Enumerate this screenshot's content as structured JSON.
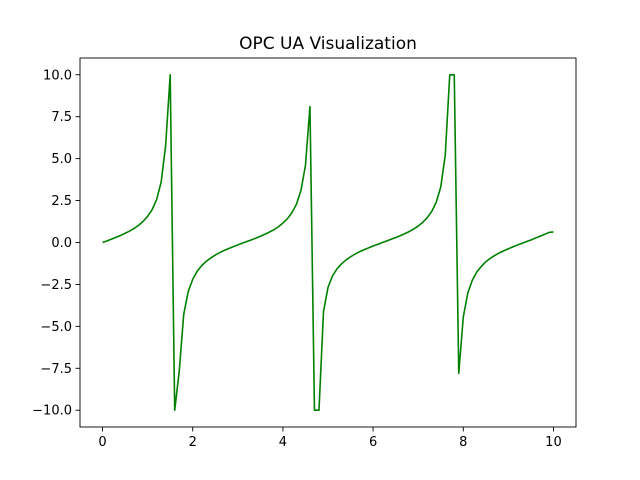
{
  "chart_data": {
    "type": "line",
    "title": "OPC UA Visualization",
    "xlabel": "",
    "ylabel": "",
    "xlim": [
      -0.5,
      10.5
    ],
    "ylim": [
      -11,
      11
    ],
    "x_ticks": [
      0,
      2,
      4,
      6,
      8,
      10
    ],
    "x_tick_labels": [
      "0",
      "2",
      "4",
      "6",
      "8",
      "10"
    ],
    "y_ticks": [
      -10.0,
      -7.5,
      -5.0,
      -2.5,
      0.0,
      2.5,
      5.0,
      7.5,
      10.0
    ],
    "y_tick_labels": [
      "−10.0",
      "−7.5",
      "−5.0",
      "−2.5",
      "0.0",
      "2.5",
      "5.0",
      "7.5",
      "10.0"
    ],
    "grid": false,
    "series": [
      {
        "color": "#008000",
        "x": [
          0,
          0.1,
          0.2,
          0.3,
          0.4,
          0.5,
          0.6,
          0.7,
          0.8,
          0.9,
          1.0,
          1.1,
          1.2,
          1.3,
          1.4,
          1.5,
          1.6,
          1.7,
          1.8,
          1.9,
          2.0,
          2.1,
          2.2,
          2.3,
          2.4,
          2.5,
          2.6,
          2.7,
          2.8,
          2.9,
          3.0,
          3.1,
          3.2,
          3.3,
          3.4,
          3.5,
          3.6,
          3.7,
          3.8,
          3.9,
          4.0,
          4.1,
          4.2,
          4.3,
          4.4,
          4.5,
          4.6,
          4.7,
          4.8,
          4.9,
          5.0,
          5.1,
          5.2,
          5.3,
          5.4,
          5.5,
          5.6,
          5.7,
          5.8,
          5.9,
          6.0,
          6.1,
          6.2,
          6.3,
          6.4,
          6.5,
          6.6,
          6.7,
          6.8,
          6.9,
          7.0,
          7.1,
          7.2,
          7.3,
          7.4,
          7.5,
          7.6,
          7.7,
          7.8,
          7.9,
          8.0,
          8.1,
          8.2,
          8.3,
          8.4,
          8.5,
          8.6,
          8.7,
          8.8,
          8.9,
          9.0,
          9.1,
          9.2,
          9.3,
          9.4,
          9.5,
          9.6,
          9.7,
          9.8,
          9.9,
          10.0
        ],
        "values": [
          0.0,
          0.1,
          0.2,
          0.31,
          0.42,
          0.55,
          0.68,
          0.84,
          1.03,
          1.26,
          1.56,
          1.96,
          2.57,
          3.6,
          5.8,
          10.0,
          -10.0,
          -7.7,
          -4.29,
          -2.93,
          -2.19,
          -1.71,
          -1.37,
          -1.12,
          -0.92,
          -0.75,
          -0.6,
          -0.47,
          -0.36,
          -0.25,
          -0.14,
          -0.04,
          0.06,
          0.16,
          0.26,
          0.37,
          0.49,
          0.62,
          0.76,
          0.94,
          1.16,
          1.42,
          1.78,
          2.28,
          3.1,
          4.6,
          8.1,
          -10.0,
          -10.0,
          -4.13,
          -2.68,
          -1.99,
          -1.57,
          -1.27,
          -1.04,
          -0.85,
          -0.69,
          -0.55,
          -0.43,
          -0.32,
          -0.21,
          -0.11,
          -0.01,
          0.09,
          0.19,
          0.29,
          0.4,
          0.52,
          0.65,
          0.8,
          0.98,
          1.2,
          1.48,
          1.85,
          2.4,
          3.3,
          5.2,
          10.0,
          10.0,
          -7.8,
          -4.45,
          -3.02,
          -2.25,
          -1.76,
          -1.42,
          -1.15,
          -0.94,
          -0.77,
          -0.62,
          -0.49,
          -0.37,
          -0.26,
          -0.15,
          -0.05,
          0.05,
          0.15,
          0.26,
          0.37,
          0.48,
          0.6,
          0.63
        ]
      }
    ]
  }
}
